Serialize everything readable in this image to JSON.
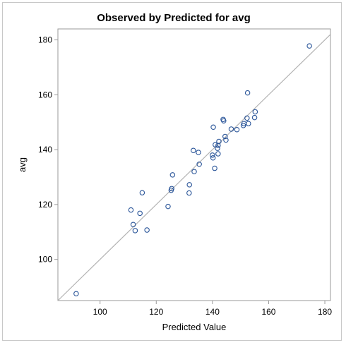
{
  "chart_data": {
    "type": "scatter",
    "title": "Observed by Predicted for avg",
    "xlabel": "Predicted Value",
    "ylabel": "avg",
    "xlim": [
      85,
      182
    ],
    "ylim": [
      85,
      184
    ],
    "xticks": [
      100,
      120,
      140,
      160,
      180
    ],
    "yticks": [
      100,
      120,
      140,
      160,
      180
    ],
    "grid": false,
    "reference_line": "y = x",
    "colors": {
      "marker": "#2a5599",
      "reference": "#b3b3b3",
      "frame": "#999999"
    },
    "points": [
      {
        "x": 91.5,
        "y": 87.5
      },
      {
        "x": 111.0,
        "y": 118.0
      },
      {
        "x": 111.8,
        "y": 112.7
      },
      {
        "x": 112.5,
        "y": 110.5
      },
      {
        "x": 114.2,
        "y": 116.8
      },
      {
        "x": 115.0,
        "y": 124.3
      },
      {
        "x": 116.7,
        "y": 110.7
      },
      {
        "x": 124.2,
        "y": 119.3
      },
      {
        "x": 125.3,
        "y": 125.2
      },
      {
        "x": 125.5,
        "y": 125.8
      },
      {
        "x": 125.8,
        "y": 130.8
      },
      {
        "x": 131.7,
        "y": 124.2
      },
      {
        "x": 131.8,
        "y": 127.2
      },
      {
        "x": 133.2,
        "y": 139.7
      },
      {
        "x": 133.5,
        "y": 132.0
      },
      {
        "x": 135.0,
        "y": 139.0
      },
      {
        "x": 135.3,
        "y": 134.7
      },
      {
        "x": 140.0,
        "y": 138.0
      },
      {
        "x": 140.2,
        "y": 137.0
      },
      {
        "x": 140.3,
        "y": 148.2
      },
      {
        "x": 140.8,
        "y": 133.2
      },
      {
        "x": 141.0,
        "y": 141.8
      },
      {
        "x": 141.8,
        "y": 140.5
      },
      {
        "x": 142.0,
        "y": 141.5
      },
      {
        "x": 142.0,
        "y": 138.5
      },
      {
        "x": 142.3,
        "y": 143.0
      },
      {
        "x": 143.8,
        "y": 151.0
      },
      {
        "x": 144.0,
        "y": 150.5
      },
      {
        "x": 144.5,
        "y": 144.8
      },
      {
        "x": 144.8,
        "y": 143.5
      },
      {
        "x": 146.7,
        "y": 147.5
      },
      {
        "x": 148.7,
        "y": 147.3
      },
      {
        "x": 151.0,
        "y": 148.8
      },
      {
        "x": 151.2,
        "y": 149.5
      },
      {
        "x": 152.3,
        "y": 151.5
      },
      {
        "x": 152.5,
        "y": 160.7
      },
      {
        "x": 152.8,
        "y": 149.5
      },
      {
        "x": 155.0,
        "y": 151.7
      },
      {
        "x": 155.2,
        "y": 153.8
      },
      {
        "x": 174.5,
        "y": 177.8
      }
    ]
  }
}
